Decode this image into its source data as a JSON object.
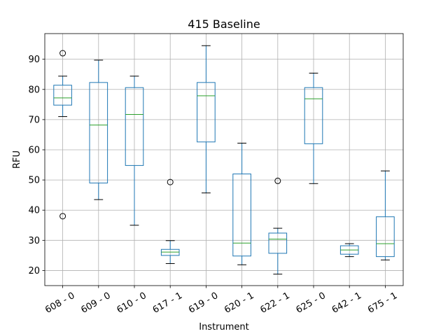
{
  "chart_data": {
    "type": "box",
    "title": "415 Baseline",
    "xlabel": "Instrument",
    "ylabel": "RFU",
    "ylim": [
      15,
      98.5
    ],
    "yticks": [
      20,
      30,
      40,
      50,
      60,
      70,
      80,
      90
    ],
    "grid": true,
    "categories": [
      "608 - 0",
      "609 - 0",
      "610 - 0",
      "617 - 1",
      "619 - 0",
      "620 - 1",
      "622 - 1",
      "625 - 0",
      "642 - 1",
      "675 - 1"
    ],
    "boxes": [
      {
        "whisker_low": 71.0,
        "q1": 74.8,
        "median": 77.2,
        "q3": 81.4,
        "whisker_high": 84.4,
        "outliers": [
          92.0,
          38.0
        ]
      },
      {
        "whisker_low": 43.5,
        "q1": 49.0,
        "median": 68.2,
        "q3": 82.3,
        "whisker_high": 89.7,
        "outliers": []
      },
      {
        "whisker_low": 35.0,
        "q1": 54.8,
        "median": 71.7,
        "q3": 80.6,
        "whisker_high": 84.4,
        "outliers": []
      },
      {
        "whisker_low": 22.3,
        "q1": 25.0,
        "median": 26.1,
        "q3": 27.0,
        "whisker_high": 29.9,
        "outliers": [
          49.3
        ]
      },
      {
        "whisker_low": 45.7,
        "q1": 62.6,
        "median": 77.9,
        "q3": 82.3,
        "whisker_high": 94.5,
        "outliers": []
      },
      {
        "whisker_low": 21.9,
        "q1": 24.8,
        "median": 29.1,
        "q3": 52.0,
        "whisker_high": 62.2,
        "outliers": []
      },
      {
        "whisker_low": 18.8,
        "q1": 25.7,
        "median": 30.4,
        "q3": 32.4,
        "whisker_high": 34.0,
        "outliers": [
          49.7
        ]
      },
      {
        "whisker_low": 48.8,
        "q1": 62.0,
        "median": 76.9,
        "q3": 80.6,
        "whisker_high": 85.4,
        "outliers": []
      },
      {
        "whisker_low": 24.6,
        "q1": 25.4,
        "median": 26.8,
        "q3": 28.2,
        "whisker_high": 28.9,
        "outliers": []
      },
      {
        "whisker_low": 23.5,
        "q1": 24.6,
        "median": 28.9,
        "q3": 37.8,
        "whisker_high": 53.0,
        "outliers": []
      }
    ],
    "colors": {
      "box": "#1f77b4",
      "median": "#2ca02c",
      "whisker": "#1f77b4",
      "cap": "#000000",
      "outlier": "#000000",
      "grid": "#b0b0b0",
      "axes": "#000000"
    }
  }
}
